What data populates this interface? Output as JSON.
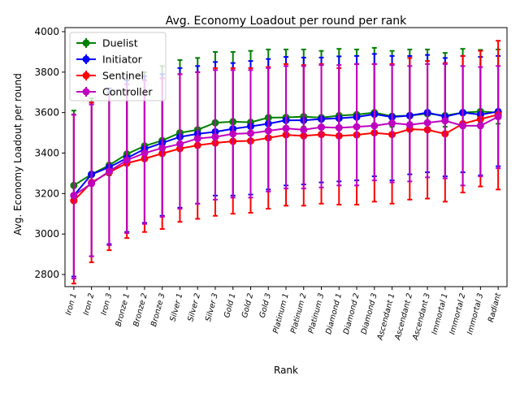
{
  "chart_data": {
    "type": "line",
    "title": "Avg. Economy Loadout per round per rank",
    "xlabel": "Rank",
    "ylabel": "Avg. Economy Loadout per round",
    "categories": [
      "Iron 1",
      "Iron 2",
      "Iron 3",
      "Bronze 1",
      "Bronze 2",
      "Bronze 3",
      "Silver 1",
      "Silver 2",
      "Silver 3",
      "Gold 1",
      "Gold 2",
      "Gold 3",
      "Platinum 1",
      "Platinum 2",
      "Platinum 3",
      "Diamond 1",
      "Diamond 2",
      "Diamond 3",
      "Ascendant 1",
      "Ascendant 2",
      "Ascendant 3",
      "Immortal 1",
      "Immortal 2",
      "Immortal 3",
      "Radiant"
    ],
    "ylim": [
      2740,
      4020
    ],
    "yticks": [
      2800,
      3000,
      3200,
      3400,
      3600,
      3800,
      4000
    ],
    "grid": false,
    "legend_position": "upper-left",
    "series": [
      {
        "name": "Duelist",
        "color": "#008000",
        "values": [
          3240,
          3295,
          3340,
          3395,
          3435,
          3462,
          3500,
          3515,
          3550,
          3555,
          3552,
          3575,
          3576,
          3580,
          3575,
          3585,
          3590,
          3600,
          3582,
          3585,
          3595,
          3585,
          3600,
          3605,
          3600
        ],
        "err_low": [
          3190,
          3240,
          3290,
          3340,
          3380,
          3410,
          3450,
          3460,
          3490,
          3500,
          3500,
          3520,
          3525,
          3530,
          3525,
          3530,
          3535,
          3545,
          3530,
          3530,
          3540,
          3530,
          3545,
          3550,
          3545
        ],
        "err_high": [
          3610,
          3670,
          3700,
          3760,
          3800,
          3830,
          3860,
          3870,
          3900,
          3900,
          3905,
          3912,
          3912,
          3912,
          3905,
          3915,
          3912,
          3920,
          3905,
          3912,
          3912,
          3895,
          3915,
          3910,
          3912
        ]
      },
      {
        "name": "Initiator",
        "color": "#0000ff",
        "values": [
          3190,
          3295,
          3330,
          3375,
          3420,
          3450,
          3480,
          3495,
          3505,
          3520,
          3532,
          3545,
          3562,
          3562,
          3568,
          3572,
          3578,
          3592,
          3578,
          3585,
          3600,
          3580,
          3600,
          3590,
          3605
        ],
        "err_low": [
          2790,
          2890,
          2950,
          3010,
          3055,
          3090,
          3130,
          3150,
          3190,
          3190,
          3195,
          3220,
          3240,
          3245,
          3255,
          3260,
          3265,
          3285,
          3265,
          3295,
          3305,
          3285,
          3305,
          3290,
          3335
        ],
        "err_high": [
          3590,
          3650,
          3720,
          3760,
          3780,
          3790,
          3820,
          3830,
          3850,
          3845,
          3855,
          3865,
          3875,
          3872,
          3872,
          3878,
          3880,
          3890,
          3880,
          3880,
          3885,
          3870,
          3880,
          3875,
          3880
        ]
      },
      {
        "name": "Sentinel",
        "color": "#ff0000",
        "values": [
          3165,
          3255,
          3305,
          3350,
          3372,
          3398,
          3422,
          3438,
          3450,
          3458,
          3460,
          3475,
          3490,
          3485,
          3492,
          3485,
          3490,
          3500,
          3492,
          3518,
          3515,
          3495,
          3545,
          3568,
          3590
        ],
        "err_low": [
          2755,
          2860,
          2920,
          2980,
          3010,
          3025,
          3060,
          3075,
          3090,
          3100,
          3105,
          3125,
          3140,
          3140,
          3150,
          3145,
          3145,
          3160,
          3150,
          3170,
          3175,
          3160,
          3205,
          3235,
          3220
        ],
        "err_high": [
          3590,
          3650,
          3690,
          3740,
          3760,
          3770,
          3790,
          3800,
          3820,
          3820,
          3820,
          3825,
          3840,
          3835,
          3840,
          3820,
          3840,
          3840,
          3840,
          3870,
          3855,
          3845,
          3880,
          3905,
          3955
        ]
      },
      {
        "name": "Controller",
        "color": "#bf00bf",
        "values": [
          3190,
          3250,
          3310,
          3365,
          3400,
          3425,
          3445,
          3472,
          3480,
          3495,
          3498,
          3510,
          3522,
          3515,
          3528,
          3525,
          3530,
          3535,
          3548,
          3540,
          3550,
          3560,
          3535,
          3535,
          3580
        ],
        "err_low": [
          2780,
          2890,
          2945,
          3005,
          3050,
          3085,
          3125,
          3150,
          3170,
          3180,
          3180,
          3210,
          3225,
          3225,
          3230,
          3240,
          3240,
          3265,
          3255,
          3260,
          3280,
          3275,
          3240,
          3285,
          3325
        ],
        "err_high": [
          3590,
          3640,
          3690,
          3740,
          3760,
          3770,
          3790,
          3800,
          3810,
          3810,
          3810,
          3820,
          3830,
          3830,
          3835,
          3835,
          3840,
          3840,
          3835,
          3830,
          3840,
          3840,
          3830,
          3825,
          3830
        ]
      }
    ]
  }
}
